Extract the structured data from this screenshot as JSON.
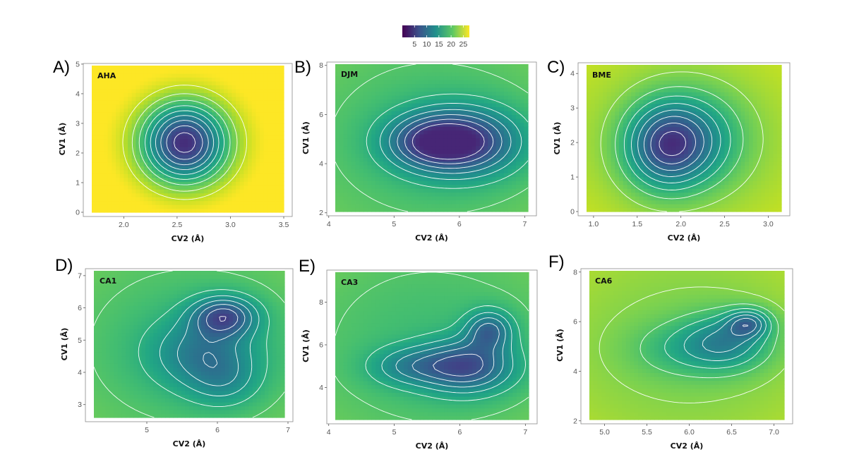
{
  "colorbar": {
    "ticks": [
      "5",
      "10",
      "15",
      "20",
      "25"
    ],
    "tick_values": [
      5,
      10,
      15,
      20,
      25
    ],
    "range": [
      0,
      27.5
    ],
    "palette": [
      "#440154",
      "#3b528b",
      "#21908c",
      "#5dc863",
      "#fde725"
    ]
  },
  "chart_data": [
    {
      "type": "heatmap",
      "subtype": "contour",
      "letter": "A)",
      "title": "AHA",
      "xlabel": "CV2 (Å)",
      "ylabel": "CV1 (Å)",
      "xlim": [
        1.7,
        3.5
      ],
      "ylim": [
        0,
        4.95
      ],
      "xticks": [
        {
          "v": 2.0,
          "label": "2.0"
        },
        {
          "v": 2.5,
          "label": "2.5"
        },
        {
          "v": 3.0,
          "label": "3.0"
        },
        {
          "v": 3.5,
          "label": "3.5"
        }
      ],
      "yticks": [
        {
          "v": 0,
          "label": "0"
        },
        {
          "v": 1,
          "label": "1"
        },
        {
          "v": 2,
          "label": "2"
        },
        {
          "v": 3,
          "label": "3"
        },
        {
          "v": 4,
          "label": "4"
        },
        {
          "v": 5,
          "label": "5"
        }
      ],
      "base": 3,
      "ceiling": 27.5,
      "minima": [
        {
          "x": 2.57,
          "y": 2.35,
          "depth": 24,
          "sx": 0.4,
          "sy": 1.35
        }
      ]
    },
    {
      "type": "heatmap",
      "subtype": "contour",
      "letter": "B)",
      "title": "DJM",
      "xlabel": "CV2 (Å)",
      "ylabel": "CV1 (Å)",
      "xlim": [
        4.1,
        7.05
      ],
      "ylim": [
        2.05,
        8.05
      ],
      "xticks": [
        {
          "v": 4,
          "label": "4"
        },
        {
          "v": 5,
          "label": "5"
        },
        {
          "v": 6,
          "label": "6"
        },
        {
          "v": 7,
          "label": "7"
        }
      ],
      "yticks": [
        {
          "v": 2,
          "label": "2"
        },
        {
          "v": 4,
          "label": "4"
        },
        {
          "v": 6,
          "label": "6"
        },
        {
          "v": 8,
          "label": "8"
        }
      ],
      "base": 3,
      "ceiling": 19,
      "minima": [
        {
          "x": 6.0,
          "y": 4.9,
          "depth": 17,
          "sx": 0.85,
          "sy": 1.3
        },
        {
          "x": 5.4,
          "y": 4.9,
          "depth": 6,
          "sx": 0.6,
          "sy": 1.0
        }
      ]
    },
    {
      "type": "heatmap",
      "subtype": "contour",
      "letter": "C)",
      "title": "BME",
      "xlabel": "CV2 (Å)",
      "ylabel": "CV1 (Å)",
      "xlim": [
        0.92,
        3.15
      ],
      "ylim": [
        0,
        4.25
      ],
      "xticks": [
        {
          "v": 1.0,
          "label": "1.0"
        },
        {
          "v": 1.5,
          "label": "1.5"
        },
        {
          "v": 2.0,
          "label": "2.0"
        },
        {
          "v": 2.5,
          "label": "2.5"
        },
        {
          "v": 3.0,
          "label": "3.0"
        }
      ],
      "yticks": [
        {
          "v": 0,
          "label": "0"
        },
        {
          "v": 1,
          "label": "1"
        },
        {
          "v": 2,
          "label": "2"
        },
        {
          "v": 3,
          "label": "3"
        },
        {
          "v": 4,
          "label": "4"
        }
      ],
      "base": 3.5,
      "ceiling": 23,
      "minima": [
        {
          "x": 1.8,
          "y": 1.9,
          "depth": 13,
          "sx": 0.45,
          "sy": 1.2
        },
        {
          "x": 2.15,
          "y": 2.1,
          "depth": 9,
          "sx": 0.55,
          "sy": 1.3
        }
      ]
    },
    {
      "type": "heatmap",
      "subtype": "contour",
      "letter": "D)",
      "title": "CA1",
      "xlabel": "CV2 (Å)",
      "ylabel": "CV1 (Å)",
      "xlim": [
        4.25,
        6.95
      ],
      "ylim": [
        2.6,
        7.15
      ],
      "xticks": [
        {
          "v": 5,
          "label": "5"
        },
        {
          "v": 6,
          "label": "6"
        },
        {
          "v": 7,
          "label": "7"
        }
      ],
      "yticks": [
        {
          "v": 3,
          "label": "3"
        },
        {
          "v": 4,
          "label": "4"
        },
        {
          "v": 5,
          "label": "5"
        },
        {
          "v": 6,
          "label": "6"
        },
        {
          "v": 7,
          "label": "7"
        }
      ],
      "base": 2,
      "ceiling": 19,
      "minima": [
        {
          "x": 6.1,
          "y": 5.75,
          "depth": 12,
          "sx": 0.45,
          "sy": 0.6
        },
        {
          "x": 5.8,
          "y": 4.6,
          "depth": 8,
          "sx": 0.75,
          "sy": 1.1
        },
        {
          "x": 6.1,
          "y": 3.7,
          "depth": 4,
          "sx": 0.5,
          "sy": 0.8
        }
      ]
    },
    {
      "type": "heatmap",
      "subtype": "contour",
      "letter": "E)",
      "title": "CA3",
      "xlabel": "CV2 (Å)",
      "ylabel": "CV1 (Å)",
      "xlim": [
        4.1,
        7.05
      ],
      "ylim": [
        2.5,
        9.4
      ],
      "xticks": [
        {
          "v": 4,
          "label": "4"
        },
        {
          "v": 5,
          "label": "5"
        },
        {
          "v": 6,
          "label": "6"
        },
        {
          "v": 7,
          "label": "7"
        }
      ],
      "yticks": [
        {
          "v": 4,
          "label": "4"
        },
        {
          "v": 6,
          "label": "6"
        },
        {
          "v": 8,
          "label": "8"
        }
      ],
      "base": 3,
      "ceiling": 19,
      "minima": [
        {
          "x": 6.1,
          "y": 5.0,
          "depth": 13,
          "sx": 0.7,
          "sy": 1.2
        },
        {
          "x": 6.45,
          "y": 6.7,
          "depth": 10,
          "sx": 0.35,
          "sy": 0.9
        },
        {
          "x": 5.2,
          "y": 5.0,
          "depth": 6,
          "sx": 0.6,
          "sy": 0.9
        }
      ]
    },
    {
      "type": "heatmap",
      "subtype": "contour",
      "letter": "F)",
      "title": "CA6",
      "xlabel": "CV2 (Å)",
      "ylabel": "CV1 (Å)",
      "xlim": [
        4.82,
        7.12
      ],
      "ylim": [
        2.05,
        8.05
      ],
      "xticks": [
        {
          "v": 5.0,
          "label": "5.0"
        },
        {
          "v": 5.5,
          "label": "5.5"
        },
        {
          "v": 6.0,
          "label": "6.0"
        },
        {
          "v": 6.5,
          "label": "6.5"
        },
        {
          "v": 7.0,
          "label": "7.0"
        }
      ],
      "yticks": [
        {
          "v": 2,
          "label": "2"
        },
        {
          "v": 4,
          "label": "4"
        },
        {
          "v": 6,
          "label": "6"
        },
        {
          "v": 8,
          "label": "8"
        }
      ],
      "base": 2,
      "ceiling": 22,
      "minima": [
        {
          "x": 6.7,
          "y": 5.95,
          "depth": 10,
          "sx": 0.25,
          "sy": 0.55
        },
        {
          "x": 6.45,
          "y": 5.2,
          "depth": 9,
          "sx": 0.5,
          "sy": 1.1
        },
        {
          "x": 5.9,
          "y": 4.9,
          "depth": 4,
          "sx": 0.6,
          "sy": 1.1
        }
      ]
    }
  ]
}
